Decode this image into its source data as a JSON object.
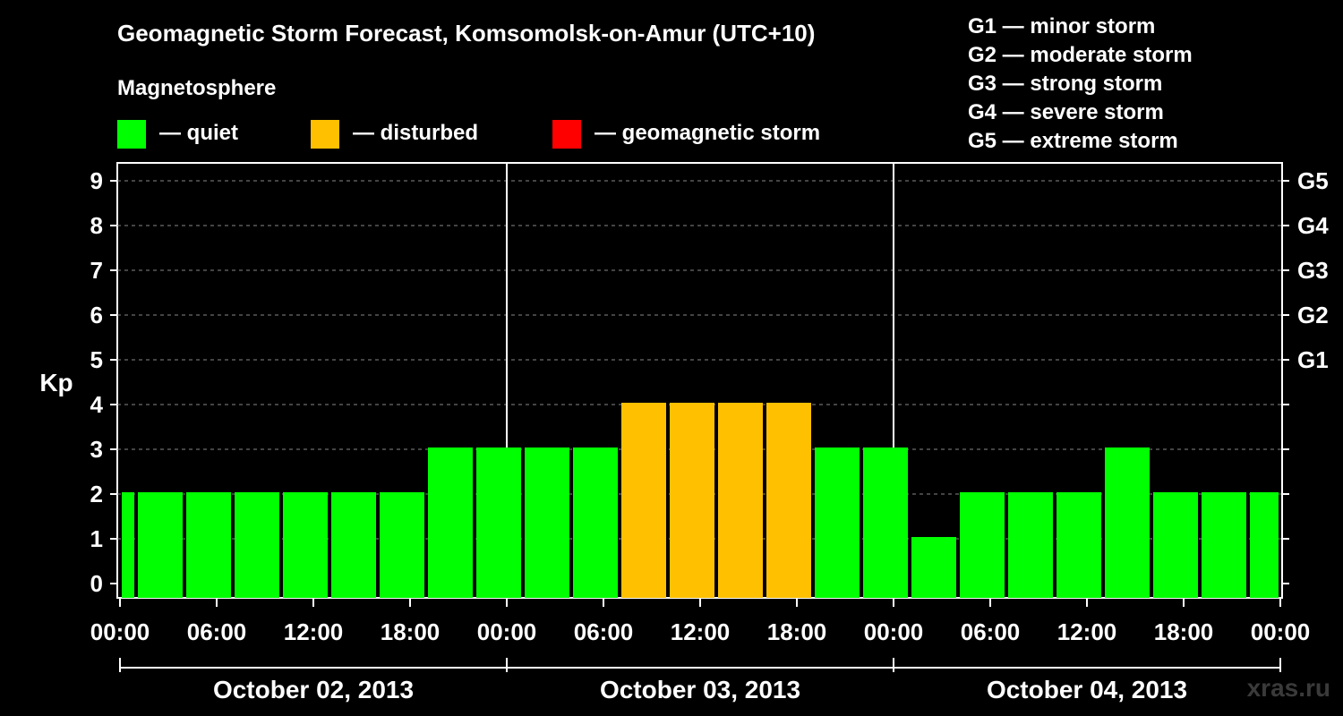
{
  "title": "Geomagnetic Storm Forecast, Komsomolsk-on-Amur (UTC+10)",
  "magnetosphere_label": "Magnetosphere",
  "legend": [
    {
      "name": "quiet",
      "label": "— quiet",
      "color": "#00ff00"
    },
    {
      "name": "disturbed",
      "label": "— disturbed",
      "color": "#ffc000"
    },
    {
      "name": "storm",
      "label": "— geomagnetic storm",
      "color": "#ff0000"
    }
  ],
  "g_levels": [
    "G1 — minor storm",
    "G2 — moderate storm",
    "G3 — strong storm",
    "G4 — severe storm",
    "G5 — extreme storm"
  ],
  "watermark": "xras.ru",
  "chart_data": {
    "type": "bar",
    "title": "Geomagnetic Storm Forecast, Komsomolsk-on-Amur (UTC+10)",
    "ylabel": "Kp",
    "ylim": [
      0,
      9
    ],
    "y_ticks": [
      "0",
      "1",
      "2",
      "3",
      "4",
      "5",
      "6",
      "7",
      "8",
      "9"
    ],
    "right_axis_ticks": [
      {
        "kp": 5,
        "label": "G1"
      },
      {
        "kp": 6,
        "label": "G2"
      },
      {
        "kp": 7,
        "label": "G3"
      },
      {
        "kp": 8,
        "label": "G4"
      },
      {
        "kp": 9,
        "label": "G5"
      }
    ],
    "x_range_hours": [
      0,
      72
    ],
    "x_tick_labels": [
      "00:00",
      "06:00",
      "12:00",
      "18:00",
      "00:00",
      "06:00",
      "12:00",
      "18:00",
      "00:00",
      "06:00",
      "12:00",
      "18:00",
      "00:00"
    ],
    "x_tick_hours": [
      0,
      6,
      12,
      18,
      24,
      30,
      36,
      42,
      48,
      54,
      60,
      66,
      72
    ],
    "day_labels": [
      "October 02, 2013",
      "October 03, 2013",
      "October 04, 2013"
    ],
    "day_boundaries_hours": [
      24,
      48
    ],
    "bar_start_hours": [
      0,
      1,
      4,
      7,
      10,
      13,
      16,
      19,
      22,
      25,
      28,
      31,
      34,
      37,
      40,
      43,
      46,
      49,
      52,
      55,
      58,
      61,
      64,
      67,
      70
    ],
    "bar_end_hours": [
      1,
      4,
      7,
      10,
      13,
      16,
      19,
      22,
      25,
      28,
      31,
      34,
      37,
      40,
      43,
      46,
      49,
      52,
      55,
      58,
      61,
      64,
      67,
      70,
      72
    ],
    "values": [
      2,
      2,
      2,
      2,
      2,
      2,
      2,
      3,
      3,
      3,
      3,
      4,
      4,
      4,
      4,
      3,
      3,
      1,
      2,
      2,
      2,
      3,
      2,
      2,
      2
    ],
    "thresholds": {
      "disturbed_min": 4,
      "storm_min": 5
    },
    "grid": true
  }
}
